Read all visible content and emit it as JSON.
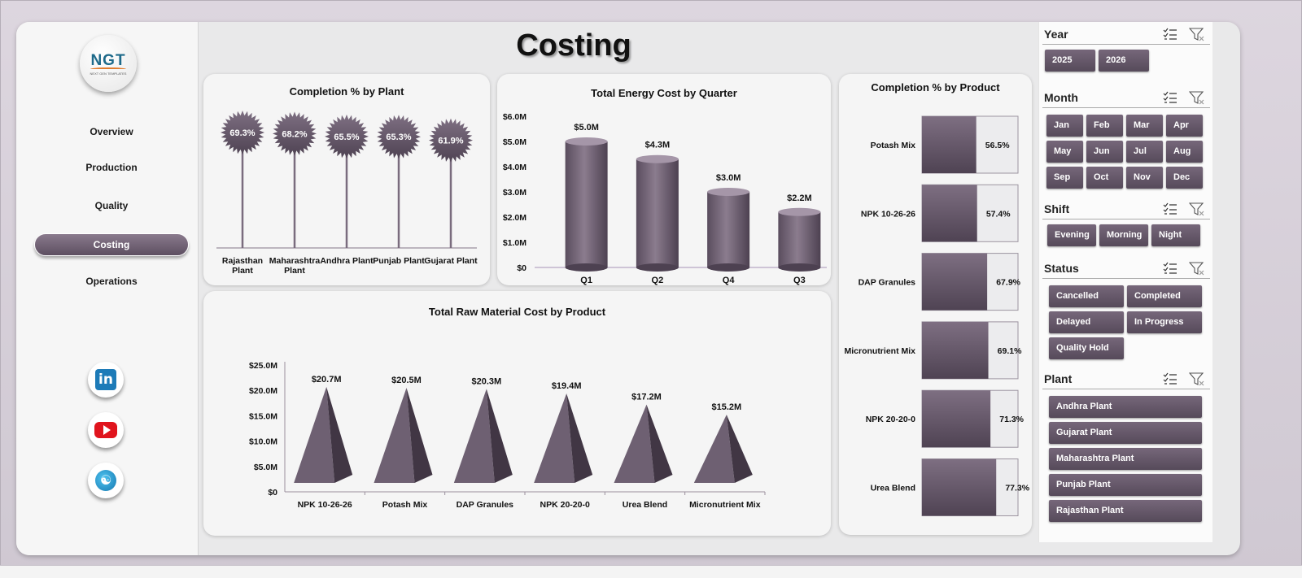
{
  "title": "Costing",
  "logo": {
    "text": "NGT",
    "subtext": "NEXT GEN TEMPLATES"
  },
  "nav": [
    {
      "label": "Overview",
      "active": false
    },
    {
      "label": "Production",
      "active": false
    },
    {
      "label": "Quality",
      "active": false
    },
    {
      "label": "Costing",
      "active": true
    },
    {
      "label": "Operations",
      "active": false
    }
  ],
  "social": [
    "linkedin-icon",
    "youtube-icon",
    "website-globe-icon"
  ],
  "colors": {
    "accent": "#6b5c6f",
    "accent_dark": "#4e4252",
    "panel": "#f5f5f5"
  },
  "charts": {
    "completion_by_plant": {
      "title": "Completion % by Plant",
      "type": "bar",
      "categories": [
        "Rajasthan Plant",
        "Maharashtra Plant",
        "Andhra Plant",
        "Punjab Plant",
        "Gujarat Plant"
      ],
      "category_lines": [
        [
          "Rajasthan",
          "Plant"
        ],
        [
          "Maharashtra",
          "Plant"
        ],
        [
          "Andhra Plant"
        ],
        [
          "Punjab Plant"
        ],
        [
          "Gujarat Plant"
        ]
      ],
      "labels": [
        "69.3%",
        "68.2%",
        "65.5%",
        "65.3%",
        "61.9%"
      ]
    },
    "energy_cost_by_quarter": {
      "title": "Total Energy Cost by Quarter",
      "type": "bar",
      "categories": [
        "Q1",
        "Q2",
        "Q4",
        "Q3"
      ],
      "values": [
        5.0,
        4.3,
        3.0,
        2.2
      ],
      "labels": [
        "$5.0M",
        "$4.3M",
        "$3.0M",
        "$2.2M"
      ],
      "ylim": [
        0,
        6
      ],
      "yticks": [
        "$0",
        "$1.0M",
        "$2.0M",
        "$3.0M",
        "$4.0M",
        "$5.0M",
        "$6.0M"
      ]
    },
    "completion_by_product": {
      "title": "Completion % by Product",
      "type": "bar",
      "categories": [
        "Potash Mix",
        "NPK 10-26-26",
        "DAP Granules",
        "Micronutrient Mix",
        "NPK 20-20-0",
        "Urea Blend"
      ],
      "values": [
        56.5,
        57.4,
        67.9,
        69.1,
        71.3,
        77.3
      ],
      "labels": [
        "56.5%",
        "57.4%",
        "67.9%",
        "69.1%",
        "71.3%",
        "77.3%"
      ]
    },
    "raw_material_cost_by_product": {
      "title": "Total Raw Material Cost by Product",
      "type": "bar",
      "categories": [
        "NPK 10-26-26",
        "Potash Mix",
        "DAP Granules",
        "NPK 20-20-0",
        "Urea Blend",
        "Micronutrient Mix"
      ],
      "values": [
        20.7,
        20.5,
        20.3,
        19.4,
        17.2,
        15.2
      ],
      "labels": [
        "$20.7M",
        "$20.5M",
        "$20.3M",
        "$19.4M",
        "$17.2M",
        "$15.2M"
      ],
      "ylim": [
        0,
        25
      ],
      "yticks": [
        "$0",
        "$5.0M",
        "$10.0M",
        "$15.0M",
        "$20.0M",
        "$25.0M"
      ]
    }
  },
  "chart_data": [
    {
      "type": "bar",
      "title": "Completion % by Plant",
      "categories": [
        "Rajasthan Plant",
        "Maharashtra Plant",
        "Andhra Plant",
        "Punjab Plant",
        "Gujarat Plant"
      ],
      "values": [
        69.3,
        68.2,
        65.5,
        65.3,
        61.9
      ]
    },
    {
      "type": "bar",
      "title": "Total Energy Cost by Quarter",
      "categories": [
        "Q1",
        "Q2",
        "Q4",
        "Q3"
      ],
      "values": [
        5.0,
        4.3,
        3.0,
        2.2
      ],
      "ylim": [
        0,
        6
      ]
    },
    {
      "type": "bar",
      "title": "Completion % by Product",
      "categories": [
        "Potash Mix",
        "NPK 10-26-26",
        "DAP Granules",
        "Micronutrient Mix",
        "NPK 20-20-0",
        "Urea Blend"
      ],
      "values": [
        56.5,
        57.4,
        67.9,
        69.1,
        71.3,
        77.3
      ]
    },
    {
      "type": "bar",
      "title": "Total Raw Material Cost by Product",
      "categories": [
        "NPK 10-26-26",
        "Potash Mix",
        "DAP Granules",
        "NPK 20-20-0",
        "Urea Blend",
        "Micronutrient Mix"
      ],
      "values": [
        20.7,
        20.5,
        20.3,
        19.4,
        17.2,
        15.2
      ],
      "ylim": [
        0,
        25
      ]
    }
  ],
  "slicers": {
    "year": {
      "title": "Year",
      "items": [
        "2025",
        "2026"
      ]
    },
    "month": {
      "title": "Month",
      "items": [
        "Jan",
        "Feb",
        "Mar",
        "Apr",
        "May",
        "Jun",
        "Jul",
        "Aug",
        "Sep",
        "Oct",
        "Nov",
        "Dec"
      ]
    },
    "shift": {
      "title": "Shift",
      "items": [
        "Evening",
        "Morning",
        "Night"
      ]
    },
    "status": {
      "title": "Status",
      "items": [
        "Cancelled",
        "Completed",
        "Delayed",
        "In Progress",
        "Quality Hold"
      ]
    },
    "plant": {
      "title": "Plant",
      "items": [
        "Andhra Plant",
        "Gujarat Plant",
        "Maharashtra Plant",
        "Punjab Plant",
        "Rajasthan Plant"
      ]
    }
  }
}
